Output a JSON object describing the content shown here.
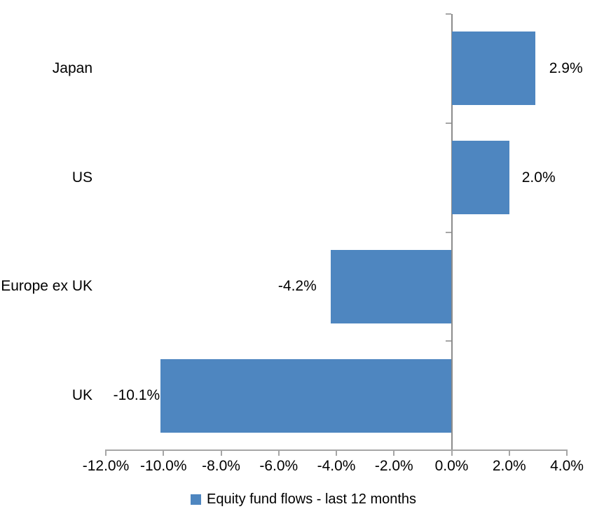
{
  "chart_data": {
    "type": "bar",
    "orientation": "horizontal",
    "title": "",
    "categories": [
      "Japan",
      "US",
      "Europe ex UK",
      "UK"
    ],
    "series": [
      {
        "name": "Equity fund flows - last 12 months",
        "values": [
          2.9,
          2.0,
          -4.2,
          -10.1
        ],
        "data_labels": [
          "2.9%",
          "2.0%",
          "-4.2%",
          "-10.1%"
        ]
      }
    ],
    "xlim": [
      -12,
      4
    ],
    "x_ticks": [
      {
        "value": -12,
        "label": "-12.0%"
      },
      {
        "value": -10,
        "label": "-10.0%"
      },
      {
        "value": -8,
        "label": "-8.0%"
      },
      {
        "value": -6,
        "label": "-6.0%"
      },
      {
        "value": -4,
        "label": "-4.0%"
      },
      {
        "value": -2,
        "label": "-2.0%"
      },
      {
        "value": 0,
        "label": "0.0%"
      },
      {
        "value": 2,
        "label": "2.0%"
      },
      {
        "value": 4,
        "label": "4.0%"
      }
    ],
    "grid": false,
    "legend": {
      "label": "Equity fund flows - last 12 months",
      "position": "bottom-center"
    },
    "colors": {
      "bar": "#4E86C0",
      "axis": "#A6A6A6",
      "zero_axis": "#8C8C8C",
      "text": "#000000",
      "background": "#FFFFFF"
    }
  }
}
